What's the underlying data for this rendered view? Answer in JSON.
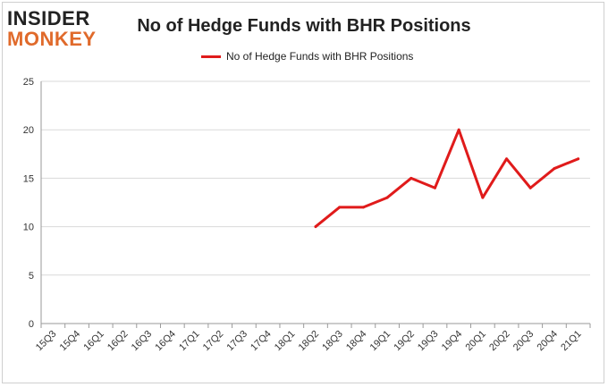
{
  "logo": {
    "line1": "INSIDER",
    "line2": "MONKEY"
  },
  "chart_data": {
    "type": "line",
    "title": "No of Hedge Funds with BHR Positions",
    "xlabel": "",
    "ylabel": "",
    "ylim": [
      0,
      25
    ],
    "yticks": [
      0,
      5,
      10,
      15,
      20,
      25
    ],
    "grid": true,
    "legend_position": "top",
    "categories": [
      "15Q3",
      "15Q4",
      "16Q1",
      "16Q2",
      "16Q3",
      "16Q4",
      "17Q1",
      "17Q2",
      "17Q3",
      "17Q4",
      "18Q1",
      "18Q2",
      "18Q3",
      "18Q4",
      "19Q1",
      "19Q2",
      "19Q3",
      "19Q4",
      "20Q1",
      "20Q2",
      "20Q3",
      "20Q4",
      "21Q1"
    ],
    "series": [
      {
        "name": "No of Hedge Funds with BHR Positions",
        "color": "#e01b1b",
        "values": [
          null,
          null,
          null,
          null,
          null,
          null,
          null,
          null,
          null,
          null,
          null,
          10,
          12,
          12,
          13,
          15,
          14,
          20,
          13,
          17,
          14,
          16,
          17
        ]
      }
    ]
  }
}
